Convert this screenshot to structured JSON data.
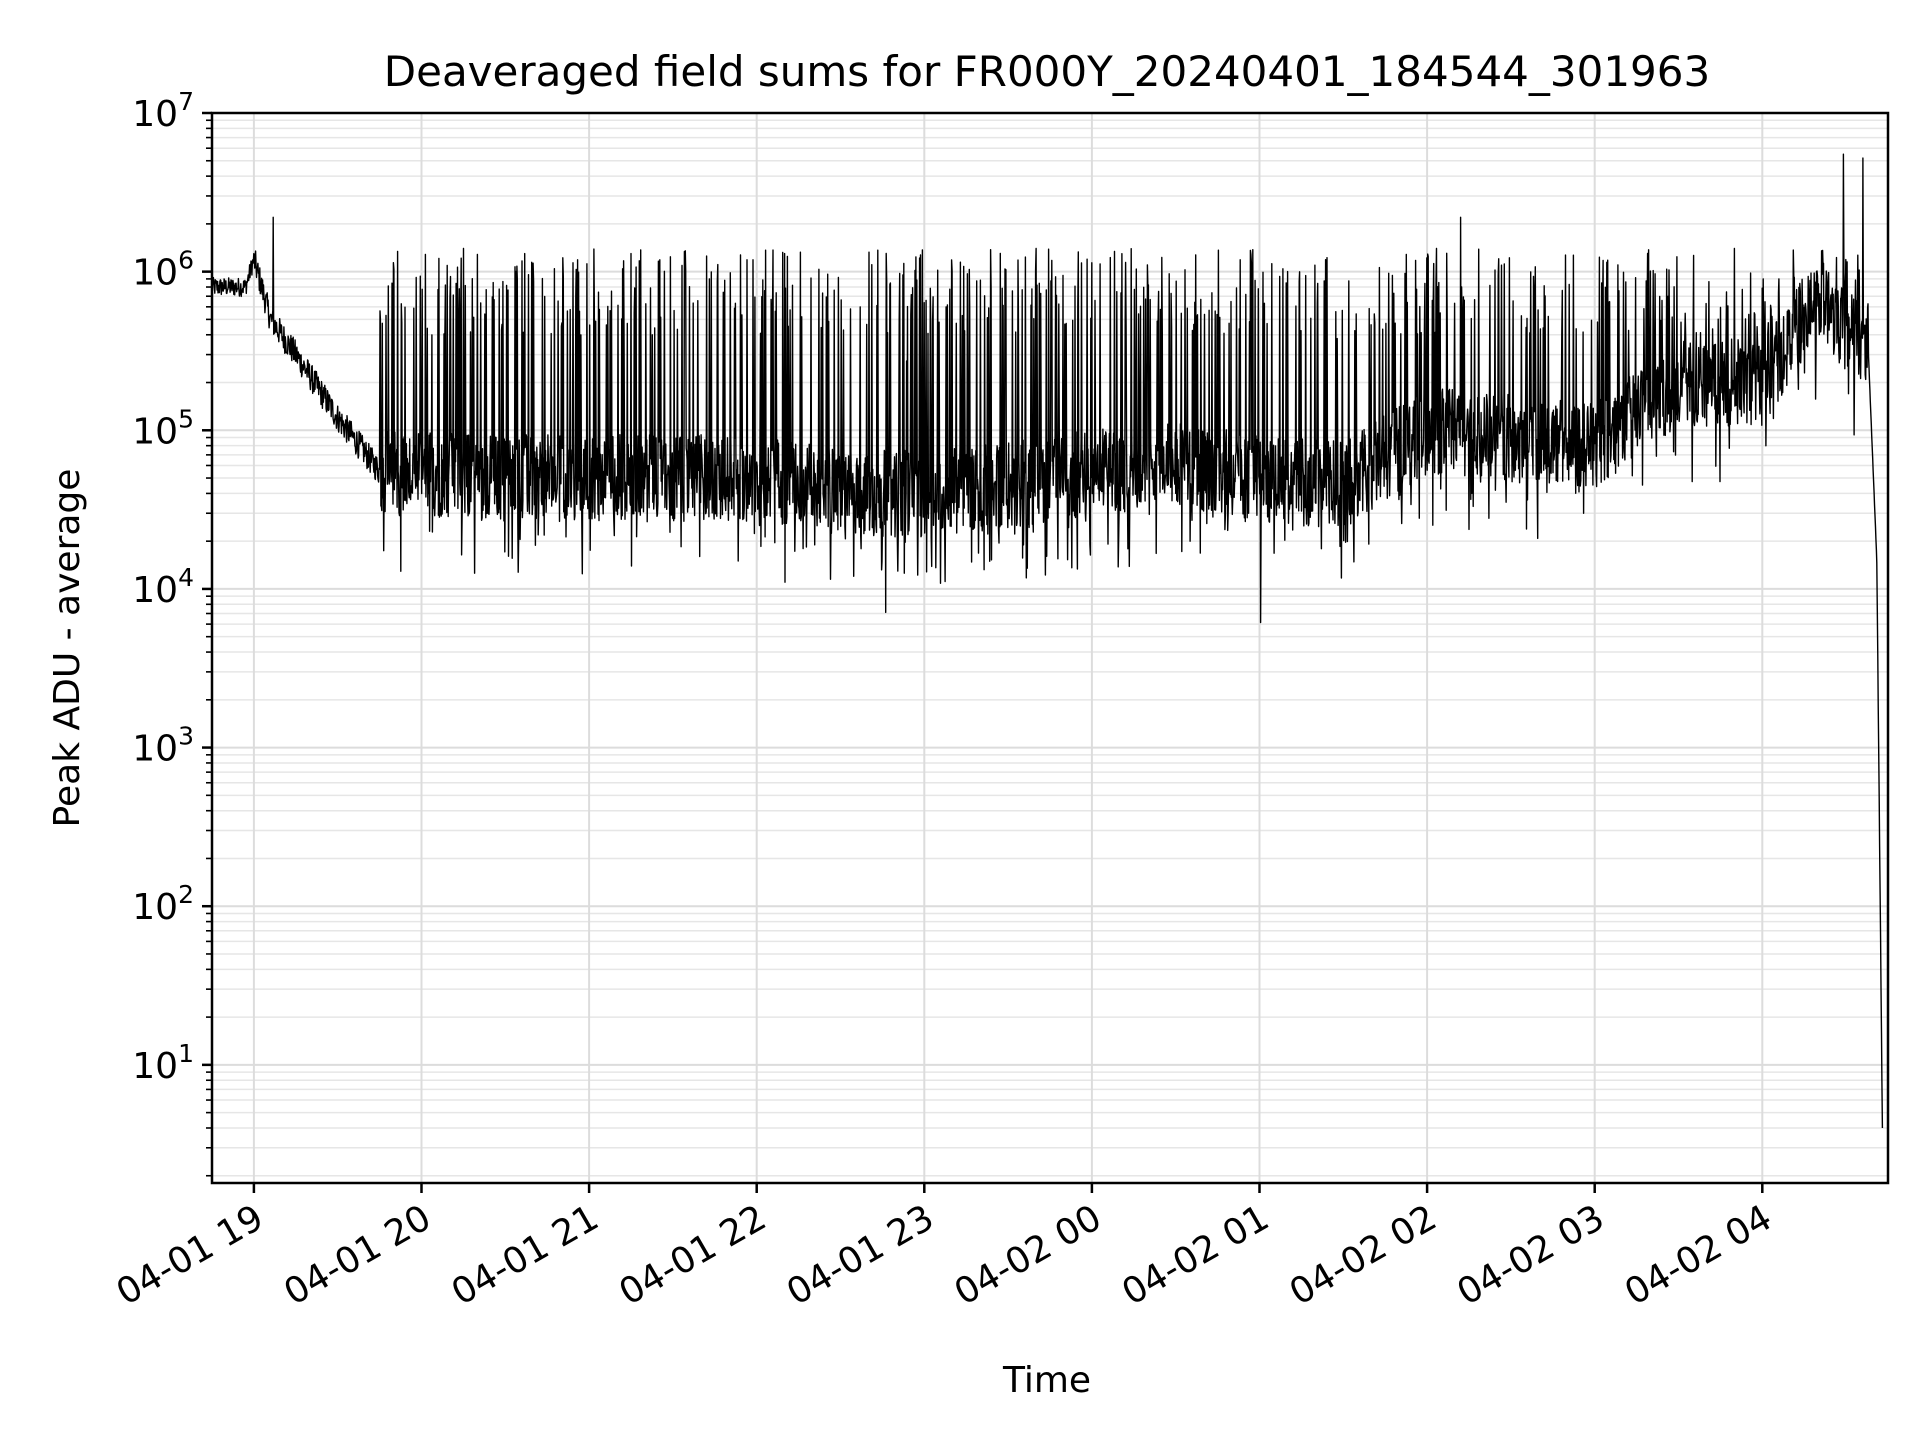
{
  "chart_data": {
    "type": "line",
    "title": "Deaveraged field sums for FR000Y_20240401_184544_301963",
    "xlabel": "Time",
    "ylabel": "Peak ADU - average",
    "yscale": "log",
    "ylim": [
      1.8,
      10000000
    ],
    "xlim": [
      "2024-04-01 18:45",
      "2024-04-02 04:45"
    ],
    "x_ticks": [
      "2024-04-01 19:00",
      "2024-04-01 20:00",
      "2024-04-01 21:00",
      "2024-04-01 22:00",
      "2024-04-01 23:00",
      "2024-04-02 00:00",
      "2024-04-02 01:00",
      "2024-04-02 02:00",
      "2024-04-02 03:00",
      "2024-04-02 04:00"
    ],
    "x_tick_labels": [
      "04-01 19",
      "04-01 20",
      "04-01 21",
      "04-01 22",
      "04-01 23",
      "04-02 00",
      "04-02 01",
      "04-02 02",
      "04-02 03",
      "04-02 04"
    ],
    "y_ticks": [
      10,
      100,
      1000,
      10000,
      100000,
      1000000,
      10000000
    ],
    "y_tick_labels": [
      {
        "base": "10",
        "exp": "1"
      },
      {
        "base": "10",
        "exp": "2"
      },
      {
        "base": "10",
        "exp": "3"
      },
      {
        "base": "10",
        "exp": "4"
      },
      {
        "base": "10",
        "exp": "5"
      },
      {
        "base": "10",
        "exp": "6"
      },
      {
        "base": "10",
        "exp": "7"
      }
    ],
    "grid": "major and minor",
    "series": [
      {
        "color": "#000000",
        "baseline": [
          {
            "x": "2024-04-01 18:45",
            "y": 800000
          },
          {
            "x": "2024-04-01 18:57",
            "y": 800000
          },
          {
            "x": "2024-04-01 19:00",
            "y": 1200000
          },
          {
            "x": "2024-04-01 19:06",
            "y": 500000
          },
          {
            "x": "2024-04-01 19:15",
            "y": 300000
          },
          {
            "x": "2024-04-01 19:30",
            "y": 120000
          },
          {
            "x": "2024-04-01 19:45",
            "y": 55000
          },
          {
            "x": "2024-04-01 20:30",
            "y": 50000
          },
          {
            "x": "2024-04-01 21:30",
            "y": 50000
          },
          {
            "x": "2024-04-01 22:00",
            "y": 50000
          },
          {
            "x": "2024-04-01 22:30",
            "y": 40000
          },
          {
            "x": "2024-04-01 23:00",
            "y": 40000
          },
          {
            "x": "2024-04-01 23:30",
            "y": 45000
          },
          {
            "x": "2024-04-02 00:00",
            "y": 55000
          },
          {
            "x": "2024-04-02 00:30",
            "y": 60000
          },
          {
            "x": "2024-04-02 01:00",
            "y": 50000
          },
          {
            "x": "2024-04-02 01:30",
            "y": 45000
          },
          {
            "x": "2024-04-02 02:00",
            "y": 100000
          },
          {
            "x": "2024-04-02 02:30",
            "y": 90000
          },
          {
            "x": "2024-04-02 03:00",
            "y": 80000
          },
          {
            "x": "2024-04-02 03:30",
            "y": 200000
          },
          {
            "x": "2024-04-02 04:00",
            "y": 200000
          },
          {
            "x": "2024-04-02 04:20",
            "y": 700000
          },
          {
            "x": "2024-04-02 04:38",
            "y": 300000
          },
          {
            "x": "2024-04-02 04:41",
            "y": 15000
          },
          {
            "x": "2024-04-02 04:43",
            "y": 4
          }
        ],
        "peaks": [
          {
            "x": "2024-04-01 19:07",
            "y": 2200000
          },
          {
            "x": "2024-04-01 20:15",
            "y": 1400000
          },
          {
            "x": "2024-04-01 21:15",
            "y": 1300000
          },
          {
            "x": "2024-04-01 22:10",
            "y": 1300000
          },
          {
            "x": "2024-04-01 23:40",
            "y": 1400000
          },
          {
            "x": "2024-04-02 01:10",
            "y": 1000000
          },
          {
            "x": "2024-04-02 02:12",
            "y": 2200000
          },
          {
            "x": "2024-04-02 03:50",
            "y": 1400000
          },
          {
            "x": "2024-04-02 04:29",
            "y": 5500000
          },
          {
            "x": "2024-04-02 04:36",
            "y": 5200000
          }
        ]
      }
    ]
  }
}
